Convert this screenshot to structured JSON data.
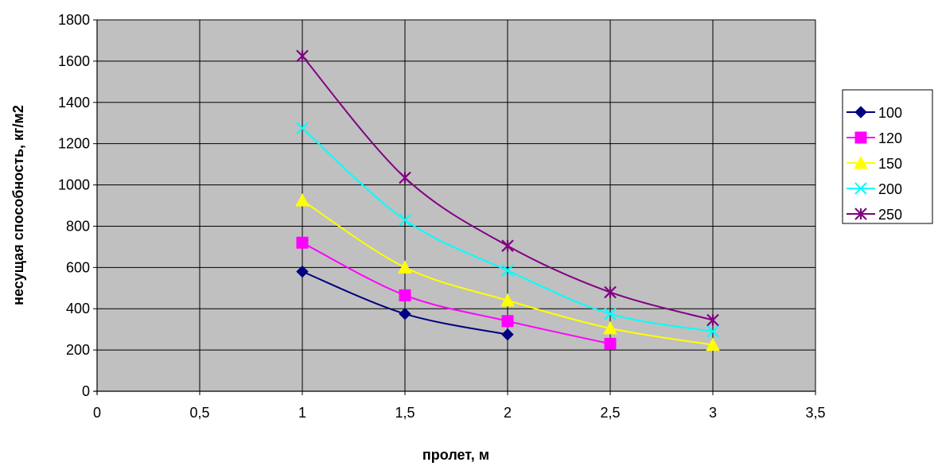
{
  "chart_data": {
    "type": "line",
    "title": "",
    "xlabel": "пролет, м",
    "ylabel": "несущая способность, кг/м2",
    "xlim": [
      0,
      3.5
    ],
    "ylim": [
      0,
      1800
    ],
    "x_ticks": [
      0,
      0.5,
      1,
      1.5,
      2,
      2.5,
      3,
      3.5
    ],
    "x_tick_labels": [
      "0",
      "0,5",
      "1",
      "1,5",
      "2",
      "2,5",
      "3",
      "3,5"
    ],
    "y_ticks": [
      0,
      200,
      400,
      600,
      800,
      1000,
      1200,
      1400,
      1600,
      1800
    ],
    "y_tick_labels": [
      "0",
      "200",
      "400",
      "600",
      "800",
      "1000",
      "1200",
      "1400",
      "1600",
      "1800"
    ],
    "grid": true,
    "plot_background": "#c0c0c0",
    "legend_position": "right",
    "smooth": true,
    "series": [
      {
        "name": "100",
        "color": "#000080",
        "marker": "diamond",
        "x": [
          1,
          1.5,
          2
        ],
        "y": [
          580,
          375,
          275
        ]
      },
      {
        "name": "120",
        "color": "#ff00ff",
        "marker": "square",
        "x": [
          1,
          1.5,
          2,
          2.5
        ],
        "y": [
          720,
          465,
          340,
          230
        ]
      },
      {
        "name": "150",
        "color": "#ffff00",
        "marker": "triangle",
        "x": [
          1,
          1.5,
          2,
          2.5,
          3
        ],
        "y": [
          925,
          600,
          440,
          305,
          225
        ]
      },
      {
        "name": "200",
        "color": "#00ffff",
        "marker": "x",
        "x": [
          1,
          1.5,
          2,
          2.5,
          3
        ],
        "y": [
          1275,
          830,
          585,
          375,
          290
        ]
      },
      {
        "name": "250",
        "color": "#800080",
        "marker": "star",
        "x": [
          1,
          1.5,
          2,
          2.5,
          3
        ],
        "y": [
          1625,
          1035,
          705,
          480,
          345
        ]
      }
    ]
  }
}
